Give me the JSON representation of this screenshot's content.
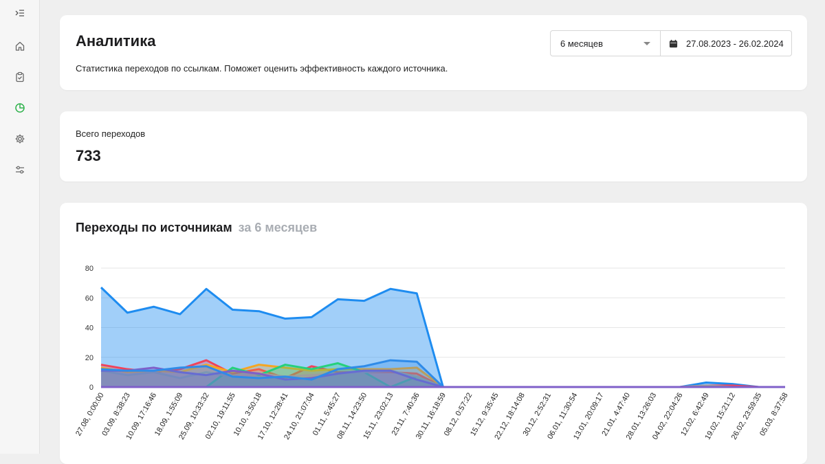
{
  "sidebar": {
    "icons": [
      {
        "name": "expand-menu-icon"
      },
      {
        "name": "home-icon"
      },
      {
        "name": "clipboard-icon"
      },
      {
        "name": "analytics-pie-icon",
        "active": true
      },
      {
        "name": "gear-icon"
      },
      {
        "name": "sliders-icon"
      }
    ],
    "active_color": "#2fb24c"
  },
  "header": {
    "title": "Аналитика",
    "subtitle": "Статистика переходов по ссылкам. Поможет оценить эффективность каждого источника.",
    "period_select": "6 месяцев",
    "date_range": "27.08.2023 - 26.02.2024"
  },
  "stats": {
    "total_label": "Всего переходов",
    "total_value": "733"
  },
  "chart_card": {
    "title": "Переходы по источникам",
    "title_suffix": "за 6 месяцев"
  },
  "chart_data": {
    "type": "area",
    "title": "Переходы по источникам",
    "subtitle": "за 6 месяцев",
    "xlabel": "",
    "ylabel": "",
    "ylim": [
      0,
      80
    ],
    "yticks": [
      0,
      20,
      40,
      60,
      80
    ],
    "grid": true,
    "legend": "none",
    "x": [
      "27.08, 0:00:00",
      "03.09, 8:38:23",
      "10.09, 17:16:46",
      "18.09, 1:55:09",
      "25.09, 10:33:32",
      "02.10, 19:11:55",
      "10.10, 3:50:18",
      "17.10, 12:28:41",
      "24.10, 21:07:04",
      "01.11, 5:45:27",
      "08.11, 14:23:50",
      "15.11, 23:02:13",
      "23.11, 7:40:36",
      "30.11, 16:18:59",
      "08.12, 0:57:22",
      "15.12, 9:35:45",
      "22.12, 18:14:08",
      "30.12, 2:52:31",
      "06.01, 11:30:54",
      "13.01, 20:09:17",
      "21.01, 4:47:40",
      "28.01, 13:26:03",
      "04.02, 22:04:26",
      "12.02, 6:42:49",
      "19.02, 15:21:12",
      "26.02, 23:59:35",
      "05.03, 8:37:58"
    ],
    "series": [
      {
        "color": "#1e8cf0",
        "values": [
          67,
          50,
          54,
          49,
          66,
          52,
          51,
          46,
          47,
          59,
          58,
          66,
          63,
          0,
          0,
          0,
          0,
          0,
          0,
          0,
          0,
          0,
          0,
          3,
          2,
          0,
          0
        ]
      },
      {
        "color": "#f0435a",
        "values": [
          15,
          12,
          10,
          12,
          18,
          9,
          12,
          6,
          14,
          10,
          10,
          10,
          9,
          0,
          0,
          0,
          0,
          0,
          0,
          0,
          0,
          0,
          0,
          1,
          1,
          0,
          0
        ]
      },
      {
        "color": "#f5a623",
        "values": [
          13,
          10,
          11,
          10,
          15,
          10,
          15,
          13,
          11,
          12,
          12,
          12,
          13,
          0,
          0,
          0,
          0,
          0,
          0,
          0,
          0,
          0,
          0,
          0,
          0,
          0,
          0
        ]
      },
      {
        "color": "#26d07c",
        "values": [
          0,
          0,
          0,
          0,
          0,
          13,
          8,
          15,
          12,
          16,
          10,
          0,
          7,
          0,
          0,
          0,
          0,
          0,
          0,
          0,
          0,
          0,
          0,
          0,
          0,
          0,
          0
        ]
      },
      {
        "color": "#9e9e9e",
        "values": [
          11,
          8,
          10,
          6,
          10,
          7,
          9,
          7,
          8,
          9,
          10,
          11,
          7,
          0,
          0,
          0,
          0,
          0,
          0,
          0,
          0,
          0,
          0,
          1,
          0,
          0,
          0
        ]
      },
      {
        "color": "#7f5fc9",
        "values": [
          11,
          11,
          13,
          10,
          8,
          11,
          9,
          5,
          6,
          9,
          11,
          11,
          5,
          0,
          0,
          0,
          0,
          0,
          0,
          0,
          0,
          0,
          0,
          0,
          0,
          0,
          0
        ]
      },
      {
        "color": "#2f8be8",
        "values": [
          12,
          11,
          11,
          13,
          14,
          7,
          6,
          7,
          5,
          12,
          14,
          18,
          17,
          0,
          0,
          0,
          0,
          0,
          0,
          0,
          0,
          0,
          0,
          0,
          0,
          0,
          0
        ]
      }
    ]
  }
}
